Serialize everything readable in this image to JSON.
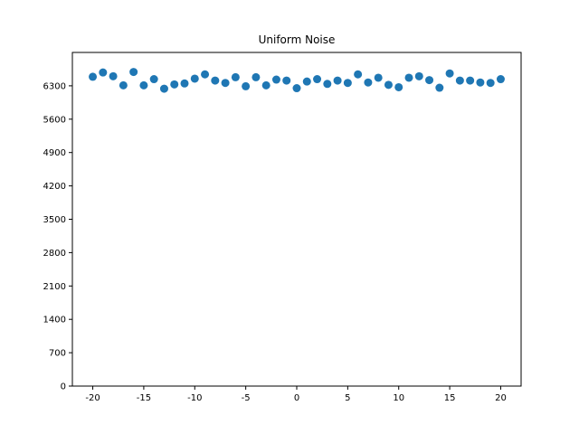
{
  "chart_data": {
    "type": "scatter",
    "title": "Uniform Noise",
    "xlabel": "",
    "ylabel": "",
    "xlim": [
      -22,
      22
    ],
    "ylim": [
      0,
      7000
    ],
    "xticks": [
      -20,
      -15,
      -10,
      -5,
      0,
      5,
      10,
      15,
      20
    ],
    "yticks": [
      0,
      700,
      1400,
      2100,
      2800,
      3500,
      4200,
      4900,
      5600,
      6300
    ],
    "grid": false,
    "marker_color": "#1f77b4",
    "series": [
      {
        "x": [
          -20,
          -19,
          -18,
          -17,
          -16,
          -15,
          -14,
          -13,
          -12,
          -11,
          -10,
          -9,
          -8,
          -7,
          -6,
          -5,
          -4,
          -3,
          -2,
          -1,
          0,
          1,
          2,
          3,
          4,
          5,
          6,
          7,
          8,
          9,
          10,
          11,
          12,
          13,
          14,
          15,
          16,
          17,
          18,
          19,
          20
        ],
        "y": [
          6490,
          6580,
          6500,
          6310,
          6590,
          6310,
          6440,
          6240,
          6330,
          6350,
          6450,
          6540,
          6410,
          6360,
          6480,
          6290,
          6480,
          6310,
          6430,
          6410,
          6250,
          6390,
          6440,
          6340,
          6410,
          6360,
          6540,
          6370,
          6470,
          6320,
          6270,
          6470,
          6500,
          6420,
          6260,
          6560,
          6410,
          6410,
          6370,
          6360,
          6440
        ]
      }
    ]
  }
}
